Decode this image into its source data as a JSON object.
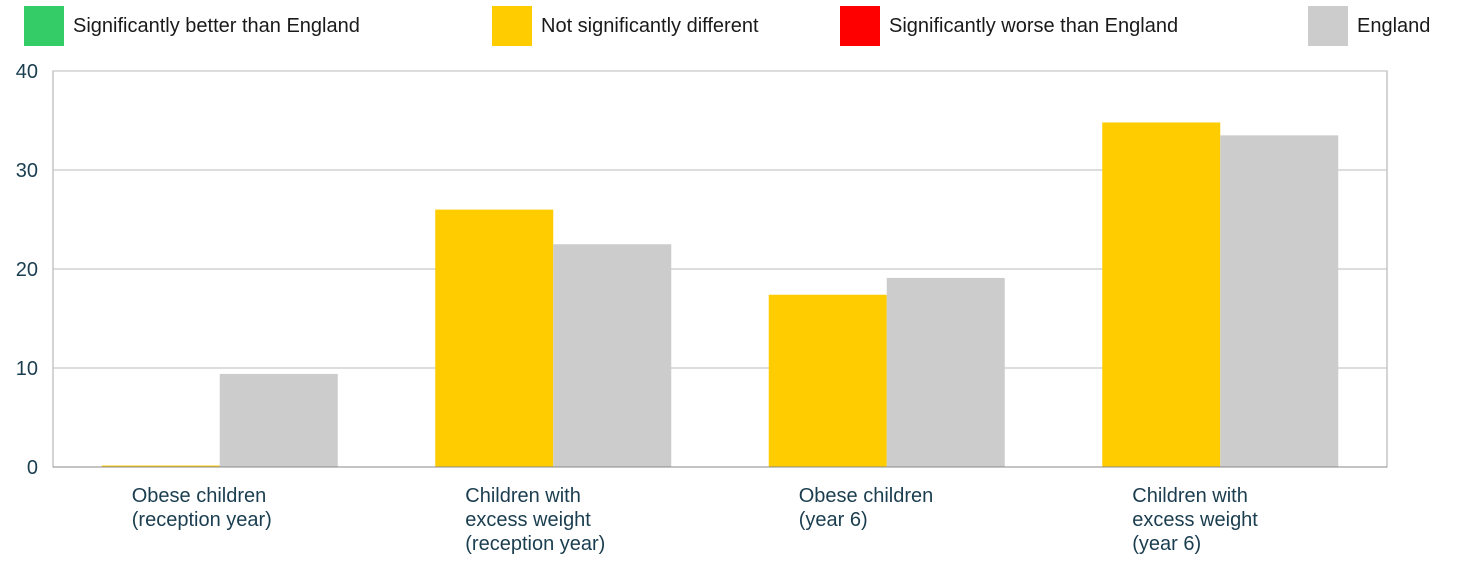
{
  "legend": [
    {
      "label": "Significantly better than England",
      "color": "#33cc66"
    },
    {
      "label": "Not significantly different",
      "color": "#ffcc00"
    },
    {
      "label": "Significantly worse than England",
      "color": "#ff0000"
    },
    {
      "label": "England",
      "color": "#cccccc"
    }
  ],
  "chart_data": {
    "type": "bar",
    "categories": [
      [
        "Obese children",
        "(reception year)"
      ],
      [
        "Children with",
        "excess weight",
        "(reception year)"
      ],
      [
        "Obese children",
        "(year 6)"
      ],
      [
        "Children with",
        "excess weight",
        "(year 6)"
      ]
    ],
    "series": [
      {
        "values": [
          0.1,
          26.0,
          17.4,
          34.8
        ],
        "color": "#ffcc00"
      },
      {
        "name": "England",
        "values": [
          9.4,
          22.5,
          19.1,
          33.5
        ],
        "color": "#cccccc"
      }
    ],
    "ylim": [
      0,
      40
    ],
    "yticks": [
      0,
      10,
      20,
      30,
      40
    ],
    "grid": true,
    "legend_position": "top"
  }
}
